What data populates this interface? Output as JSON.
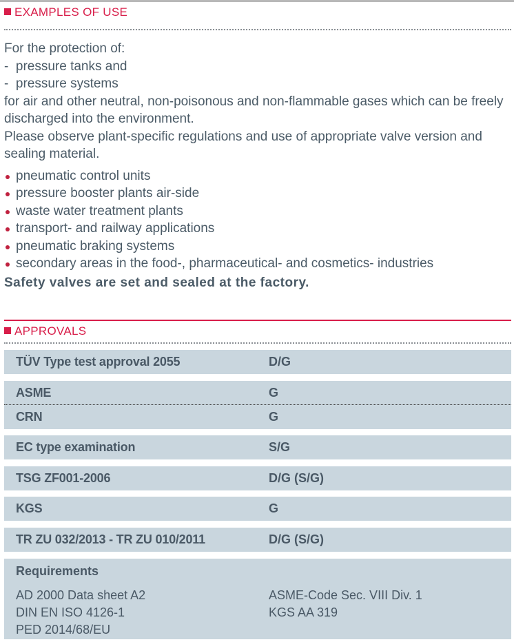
{
  "examples": {
    "heading": "EXAMPLES OF USE",
    "intro": "For the protection of:",
    "dash_items": [
      "-  pressure tanks and",
      "-  pressure systems"
    ],
    "para1": "for air and other neutral, non-poisonous and non-flammable gases which can be freely discharged into the environment.",
    "para2": "Please observe plant-specific regulations and use of appropriate valve version and sealing material.",
    "bullets": [
      "pneumatic control units",
      "pressure booster plants air-side",
      "waste water treatment plants",
      "transport- and railway applications",
      "pneumatic braking systems",
      "secondary areas in the food-, pharmaceutical- and cosmetics- industries"
    ],
    "note": "Safety valves are set and sealed at the factory."
  },
  "approvals": {
    "heading": "APPROVALS",
    "rows": [
      {
        "name": "TÜV Type test approval 2055",
        "value": "D/G"
      },
      {
        "name": "ASME",
        "value": "G"
      },
      {
        "name": "CRN",
        "value": "G"
      },
      {
        "name": "EC type examination",
        "value": "S/G"
      },
      {
        "name": "TSG ZF001-2006",
        "value": "D/G (S/G)"
      },
      {
        "name": "KGS",
        "value": "G"
      },
      {
        "name": "TR ZU 032/2013 - TR ZU 010/2011",
        "value": "D/G (S/G)"
      }
    ],
    "requirements": {
      "title": "Requirements",
      "left": [
        "AD 2000 Data sheet A2",
        "DIN EN ISO 4126-1",
        "PED 2014/68/EU"
      ],
      "right": [
        "ASME-Code Sec. VIII Div. 1",
        "KGS AA 319"
      ]
    }
  },
  "colors": {
    "accent": "#d81e4a",
    "row_bg": "#c9d6de",
    "text": "#4b5b67"
  }
}
